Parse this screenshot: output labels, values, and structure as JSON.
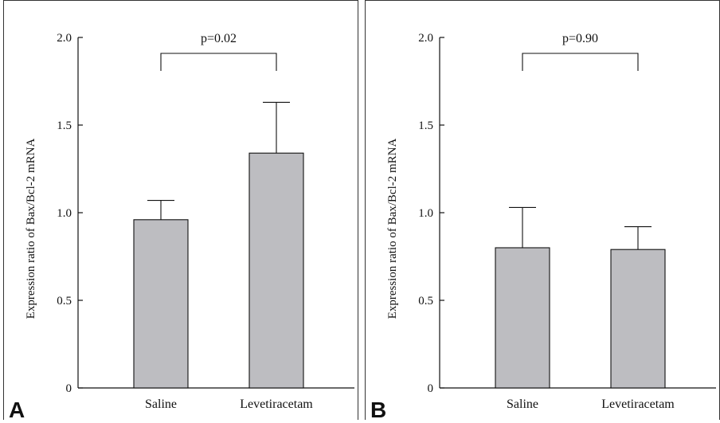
{
  "chart_data": [
    {
      "type": "bar",
      "panel_label": "A",
      "categories": [
        "Saline",
        "Levetiracetam"
      ],
      "values": [
        0.96,
        1.34
      ],
      "error_upper": [
        1.07,
        1.63
      ],
      "ylabel": "Expression ratio of Bax/Bcl-2 mRNA",
      "xlabel": "",
      "ylim": [
        0,
        2.0
      ],
      "yticks": [
        "0",
        "0.5",
        "1.0",
        "1.5",
        "2.0"
      ],
      "ytick_values": [
        0,
        0.5,
        1.0,
        1.5,
        2.0
      ],
      "significance": "p=0.02",
      "bar_color": "#bdbdc1"
    },
    {
      "type": "bar",
      "panel_label": "B",
      "categories": [
        "Saline",
        "Levetiracetam"
      ],
      "values": [
        0.8,
        0.79
      ],
      "error_upper": [
        1.03,
        0.92
      ],
      "ylabel": "Expression ratio of Bax/Bcl-2 mRNA",
      "xlabel": "",
      "ylim": [
        0,
        2.0
      ],
      "yticks": [
        "0",
        "0.5",
        "1.0",
        "1.5",
        "2.0"
      ],
      "ytick_values": [
        0,
        0.5,
        1.0,
        1.5,
        2.0
      ],
      "significance": "p=0.90",
      "bar_color": "#bdbdc1"
    }
  ]
}
